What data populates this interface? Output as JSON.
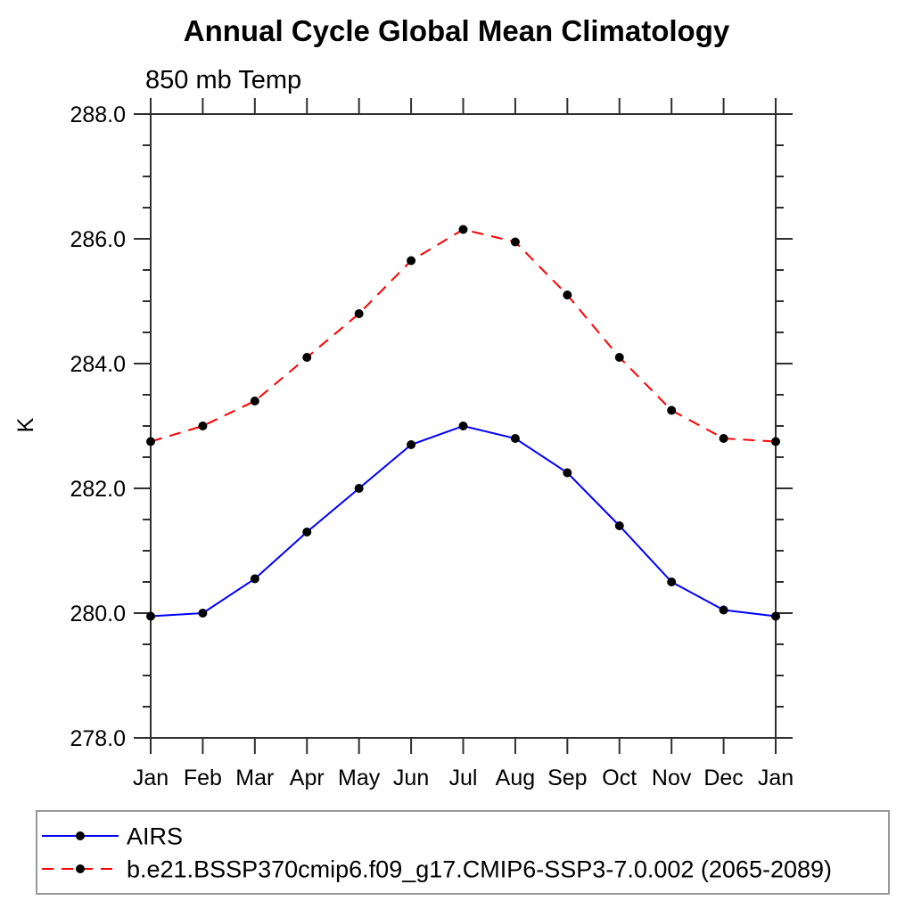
{
  "chart_data": {
    "type": "line",
    "title": "Annual Cycle Global Mean Climatology",
    "subtitle": "850 mb Temp",
    "ylabel": "K",
    "xlabel": "",
    "ylim": [
      278.0,
      288.0
    ],
    "ytick_step": 2.0,
    "yminor_step": 0.5,
    "ytick_labels": [
      "278.0",
      "280.0",
      "282.0",
      "284.0",
      "286.0",
      "288.0"
    ],
    "categories": [
      "Jan",
      "Feb",
      "Mar",
      "Apr",
      "May",
      "Jun",
      "Jul",
      "Aug",
      "Sep",
      "Oct",
      "Nov",
      "Dec",
      "Jan"
    ],
    "series": [
      {
        "name": "AIRS",
        "color": "#0000ff",
        "line_style": "solid",
        "marker": "filled-circle",
        "marker_color": "#000000",
        "values": [
          279.95,
          280.0,
          280.55,
          281.3,
          282.0,
          282.7,
          283.0,
          282.8,
          282.25,
          281.4,
          280.5,
          280.05,
          279.95
        ]
      },
      {
        "name": "b.e21.BSSP370cmip6.f09_g17.CMIP6-SSP3-7.0.002 (2065-2089)",
        "color": "#ff0000",
        "line_style": "dashed",
        "marker": "filled-circle",
        "marker_color": "#000000",
        "values": [
          282.75,
          283.0,
          283.4,
          284.1,
          284.8,
          285.65,
          286.15,
          285.95,
          285.1,
          284.1,
          283.25,
          282.8,
          282.75
        ]
      }
    ],
    "legend_position": "bottom-left",
    "grid": false,
    "axis_color": "#2f2f2f",
    "background_color": "#ffffff"
  }
}
